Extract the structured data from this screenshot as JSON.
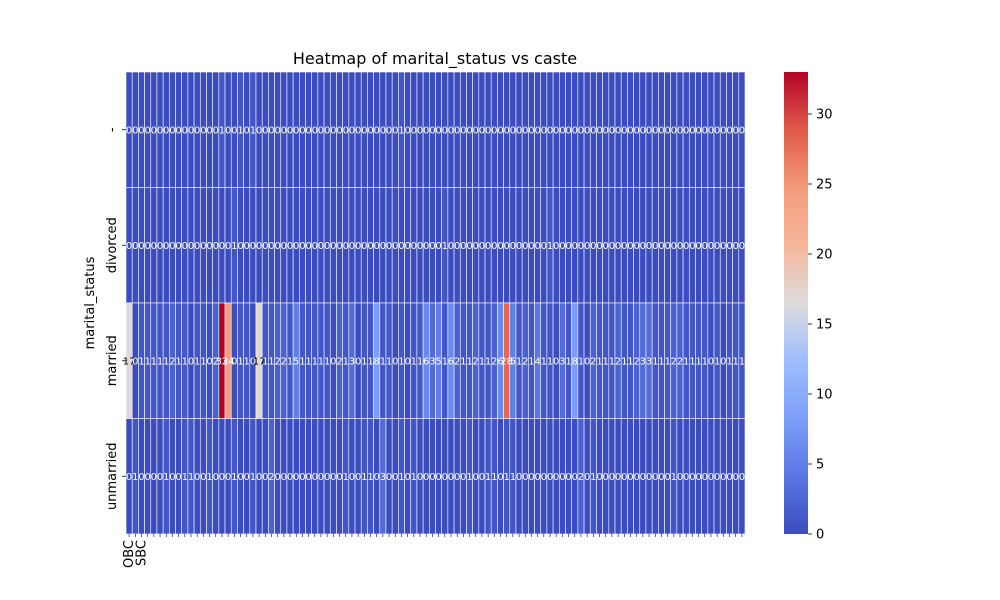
{
  "chart_data": {
    "type": "heatmap",
    "title": "Heatmap of marital_status vs caste",
    "xlabel": "",
    "ylabel": "marital_status",
    "y_categories": [
      "-",
      "divorced",
      "married",
      "unmarried"
    ],
    "x_categories": [
      "OBC",
      "",
      "SBC",
      "",
      "",
      "",
      "",
      "",
      "",
      "",
      "",
      "",
      "",
      "",
      "",
      "",
      "",
      "",
      "",
      "",
      "",
      "",
      "",
      "",
      "",
      "",
      "",
      "",
      "",
      "",
      "",
      "",
      "",
      "",
      "",
      "",
      "",
      "",
      "",
      "",
      "",
      "",
      "",
      "",
      "",
      "",
      "",
      "",
      "",
      "",
      "",
      "",
      "",
      "",
      "",
      "",
      "",
      "",
      "",
      "",
      "",
      "",
      "",
      "",
      "",
      "",
      "",
      "",
      "",
      "",
      "",
      "",
      "",
      "",
      "",
      "",
      "",
      "",
      "",
      "",
      "",
      "",
      "",
      "",
      "",
      "",
      "",
      "",
      "",
      "",
      "",
      "",
      "",
      "",
      "",
      "",
      "",
      "",
      "",
      ""
    ],
    "values": [
      [
        0,
        0,
        0,
        0,
        0,
        0,
        0,
        0,
        0,
        0,
        0,
        0,
        0,
        0,
        0,
        1,
        0,
        0,
        1,
        0,
        1,
        0,
        0,
        0,
        0,
        0,
        0,
        0,
        0,
        0,
        0,
        0,
        0,
        0,
        0,
        0,
        0,
        0,
        0,
        0,
        0,
        0,
        0,
        0,
        1,
        0,
        0,
        0,
        0,
        0,
        0,
        0,
        0,
        0,
        0,
        0,
        0,
        0,
        0,
        0,
        0,
        0,
        0,
        0,
        0,
        0,
        0,
        0,
        0,
        0,
        0,
        0,
        0,
        0,
        0,
        0,
        0,
        0,
        0,
        0,
        0,
        0,
        0,
        0,
        0,
        0,
        0,
        0,
        0,
        0,
        0,
        0,
        0,
        0,
        0,
        0,
        0,
        0,
        0,
        0
      ],
      [
        0,
        0,
        0,
        0,
        0,
        0,
        0,
        0,
        0,
        0,
        0,
        0,
        0,
        0,
        0,
        0,
        0,
        1,
        0,
        0,
        0,
        0,
        0,
        0,
        0,
        0,
        0,
        0,
        0,
        0,
        0,
        0,
        0,
        0,
        0,
        0,
        0,
        0,
        0,
        0,
        0,
        0,
        0,
        0,
        0,
        0,
        0,
        0,
        0,
        0,
        0,
        1,
        0,
        0,
        0,
        0,
        0,
        0,
        0,
        0,
        0,
        0,
        0,
        0,
        0,
        0,
        0,
        0,
        1,
        0,
        0,
        0,
        0,
        0,
        0,
        0,
        0,
        0,
        0,
        0,
        0,
        0,
        0,
        0,
        0,
        0,
        0,
        0,
        0,
        0,
        0,
        0,
        0,
        0,
        0,
        0,
        0,
        0,
        0,
        0
      ],
      [
        17,
        0,
        1,
        1,
        1,
        1,
        1,
        2,
        1,
        1,
        0,
        1,
        1,
        0,
        2,
        33,
        24,
        0,
        1,
        1,
        0,
        17,
        1,
        1,
        2,
        2,
        1,
        5,
        1,
        1,
        1,
        1,
        1,
        0,
        2,
        1,
        3,
        0,
        1,
        1,
        8,
        1,
        1,
        0,
        1,
        0,
        1,
        1,
        6,
        3,
        5,
        1,
        6,
        2,
        1,
        1,
        2,
        1,
        1,
        2,
        6,
        28,
        5,
        1,
        2,
        1,
        4,
        1,
        1,
        0,
        3,
        1,
        8,
        1,
        0,
        2,
        1,
        1,
        1,
        2,
        1,
        1,
        2,
        3,
        3,
        1,
        1,
        1,
        2,
        2,
        1,
        1,
        1,
        1,
        0,
        1,
        0,
        1,
        1,
        1
      ],
      [
        0,
        1,
        0,
        0,
        0,
        0,
        1,
        0,
        0,
        1,
        1,
        0,
        0,
        1,
        0,
        0,
        0,
        1,
        0,
        0,
        1,
        0,
        0,
        2,
        0,
        0,
        0,
        0,
        0,
        0,
        0,
        0,
        0,
        0,
        0,
        1,
        0,
        0,
        1,
        1,
        0,
        3,
        0,
        0,
        1,
        0,
        1,
        0,
        0,
        0,
        0,
        0,
        0,
        0,
        0,
        1,
        0,
        0,
        1,
        1,
        0,
        1,
        1,
        0,
        0,
        0,
        0,
        0,
        0,
        0,
        0,
        0,
        0,
        2,
        0,
        1,
        0,
        0,
        0,
        0,
        0,
        0,
        0,
        0,
        0,
        0,
        0,
        0,
        1,
        0,
        0,
        0,
        0,
        0,
        0,
        0,
        0,
        0,
        0,
        0
      ]
    ],
    "vmin": 0,
    "vmax": 33,
    "colormap": "coolwarm",
    "annotations": true,
    "colorbar_ticks": [
      0,
      5,
      10,
      15,
      20,
      25,
      30
    ],
    "colorbar_placement": "right",
    "grid": true,
    "cell_line_color": "#ffffff"
  }
}
